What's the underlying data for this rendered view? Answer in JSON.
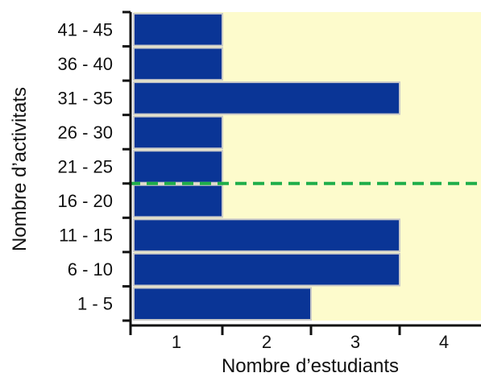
{
  "chart_data": {
    "type": "bar",
    "orientation": "horizontal",
    "categories": [
      "1 - 5",
      "6 - 10",
      "11 - 15",
      "16 - 20",
      "21 - 25",
      "26 - 30",
      "31 - 35",
      "36 - 40",
      "41 - 45"
    ],
    "values": [
      2,
      3,
      3,
      1,
      1,
      1,
      3,
      1,
      1
    ],
    "xlabel": "Nombre d’estudiants",
    "ylabel": "Nombre d’activitats",
    "x_ticks": [
      "1",
      "2",
      "3",
      "4"
    ],
    "xlim": [
      0,
      4
    ],
    "reference_line": {
      "orientation": "horizontal",
      "position": "between 16 - 20 and 21 - 25",
      "style": "dashed",
      "color": "#1fae4a"
    },
    "colors": {
      "bar": "#0a3596",
      "bar_edge": "#c8c8c8",
      "plot_background": "#fdfbcc",
      "axis": "#111111"
    }
  }
}
